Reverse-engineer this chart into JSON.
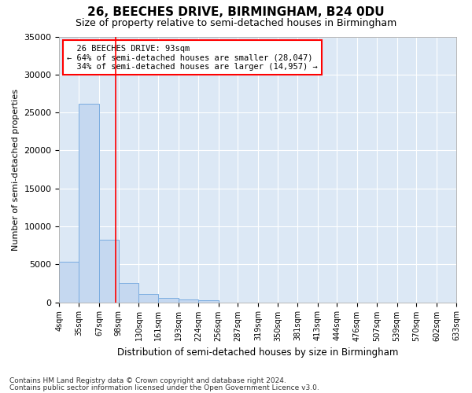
{
  "title": "26, BEECHES DRIVE, BIRMINGHAM, B24 0DU",
  "subtitle": "Size of property relative to semi-detached houses in Birmingham",
  "xlabel": "Distribution of semi-detached houses by size in Birmingham",
  "ylabel": "Number of semi-detached properties",
  "footnote1": "Contains HM Land Registry data © Crown copyright and database right 2024.",
  "footnote2": "Contains public sector information licensed under the Open Government Licence v3.0.",
  "property_label": "26 BEECHES DRIVE: 93sqm",
  "pct_smaller": 64,
  "pct_larger": 34,
  "n_smaller": 28047,
  "n_larger": 14957,
  "bin_edges": [
    4,
    35,
    67,
    98,
    130,
    161,
    193,
    224,
    256,
    287,
    319,
    350,
    381,
    413,
    444,
    476,
    507,
    539,
    570,
    602,
    633
  ],
  "bin_counts": [
    5300,
    26100,
    8200,
    2500,
    1050,
    600,
    350,
    300,
    0,
    0,
    0,
    0,
    0,
    0,
    0,
    0,
    0,
    0,
    0,
    0
  ],
  "bar_color": "#c5d8f0",
  "bar_edge_color": "#7aace0",
  "vline_color": "red",
  "vline_x": 93,
  "background_color": "#dce8f5",
  "grid_color": "#ffffff",
  "ylim": [
    0,
    35000
  ],
  "yticks": [
    0,
    5000,
    10000,
    15000,
    20000,
    25000,
    30000,
    35000
  ]
}
